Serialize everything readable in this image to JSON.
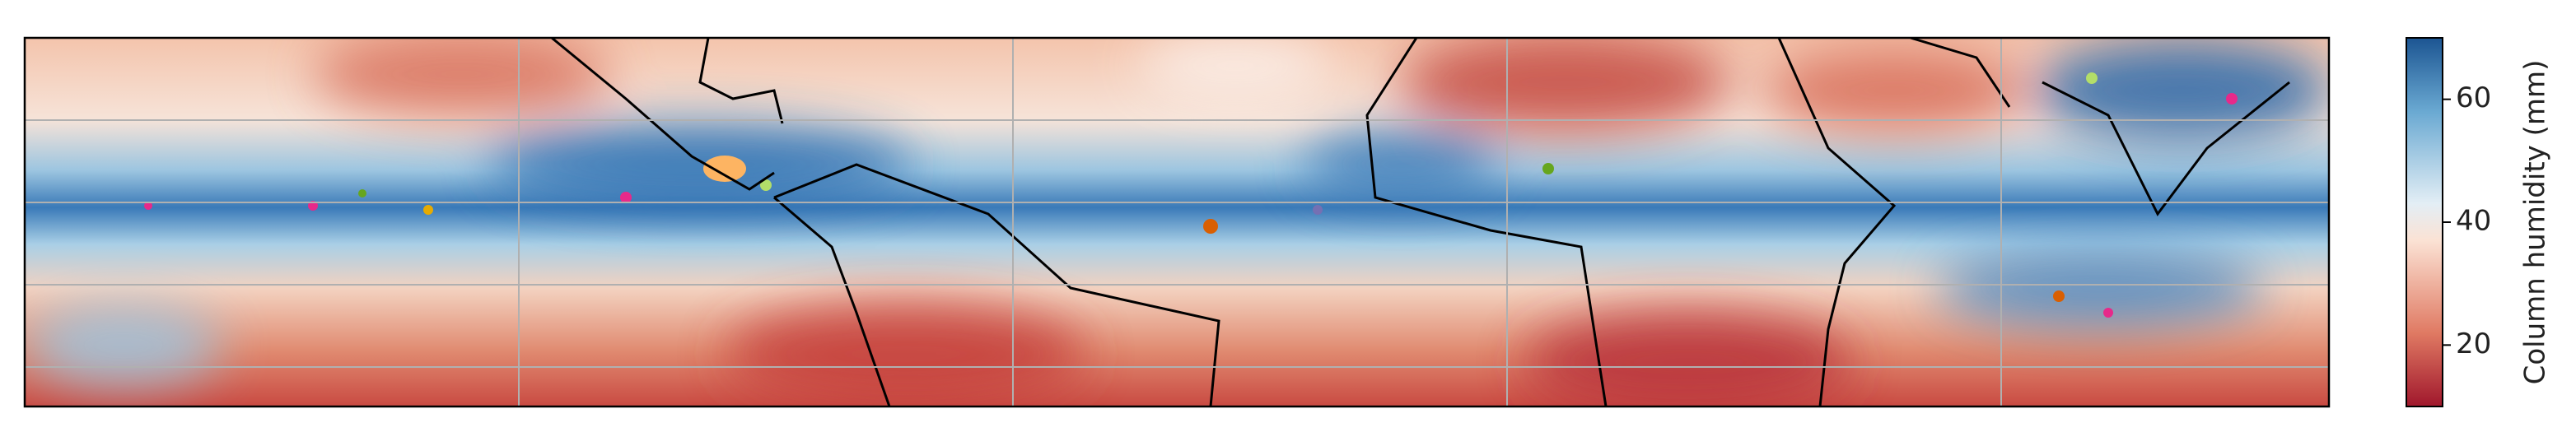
{
  "colorbar": {
    "label": "Column humidity (mm)",
    "lim": [
      10,
      70
    ],
    "ticks": [
      20,
      40,
      60
    ]
  }
}
